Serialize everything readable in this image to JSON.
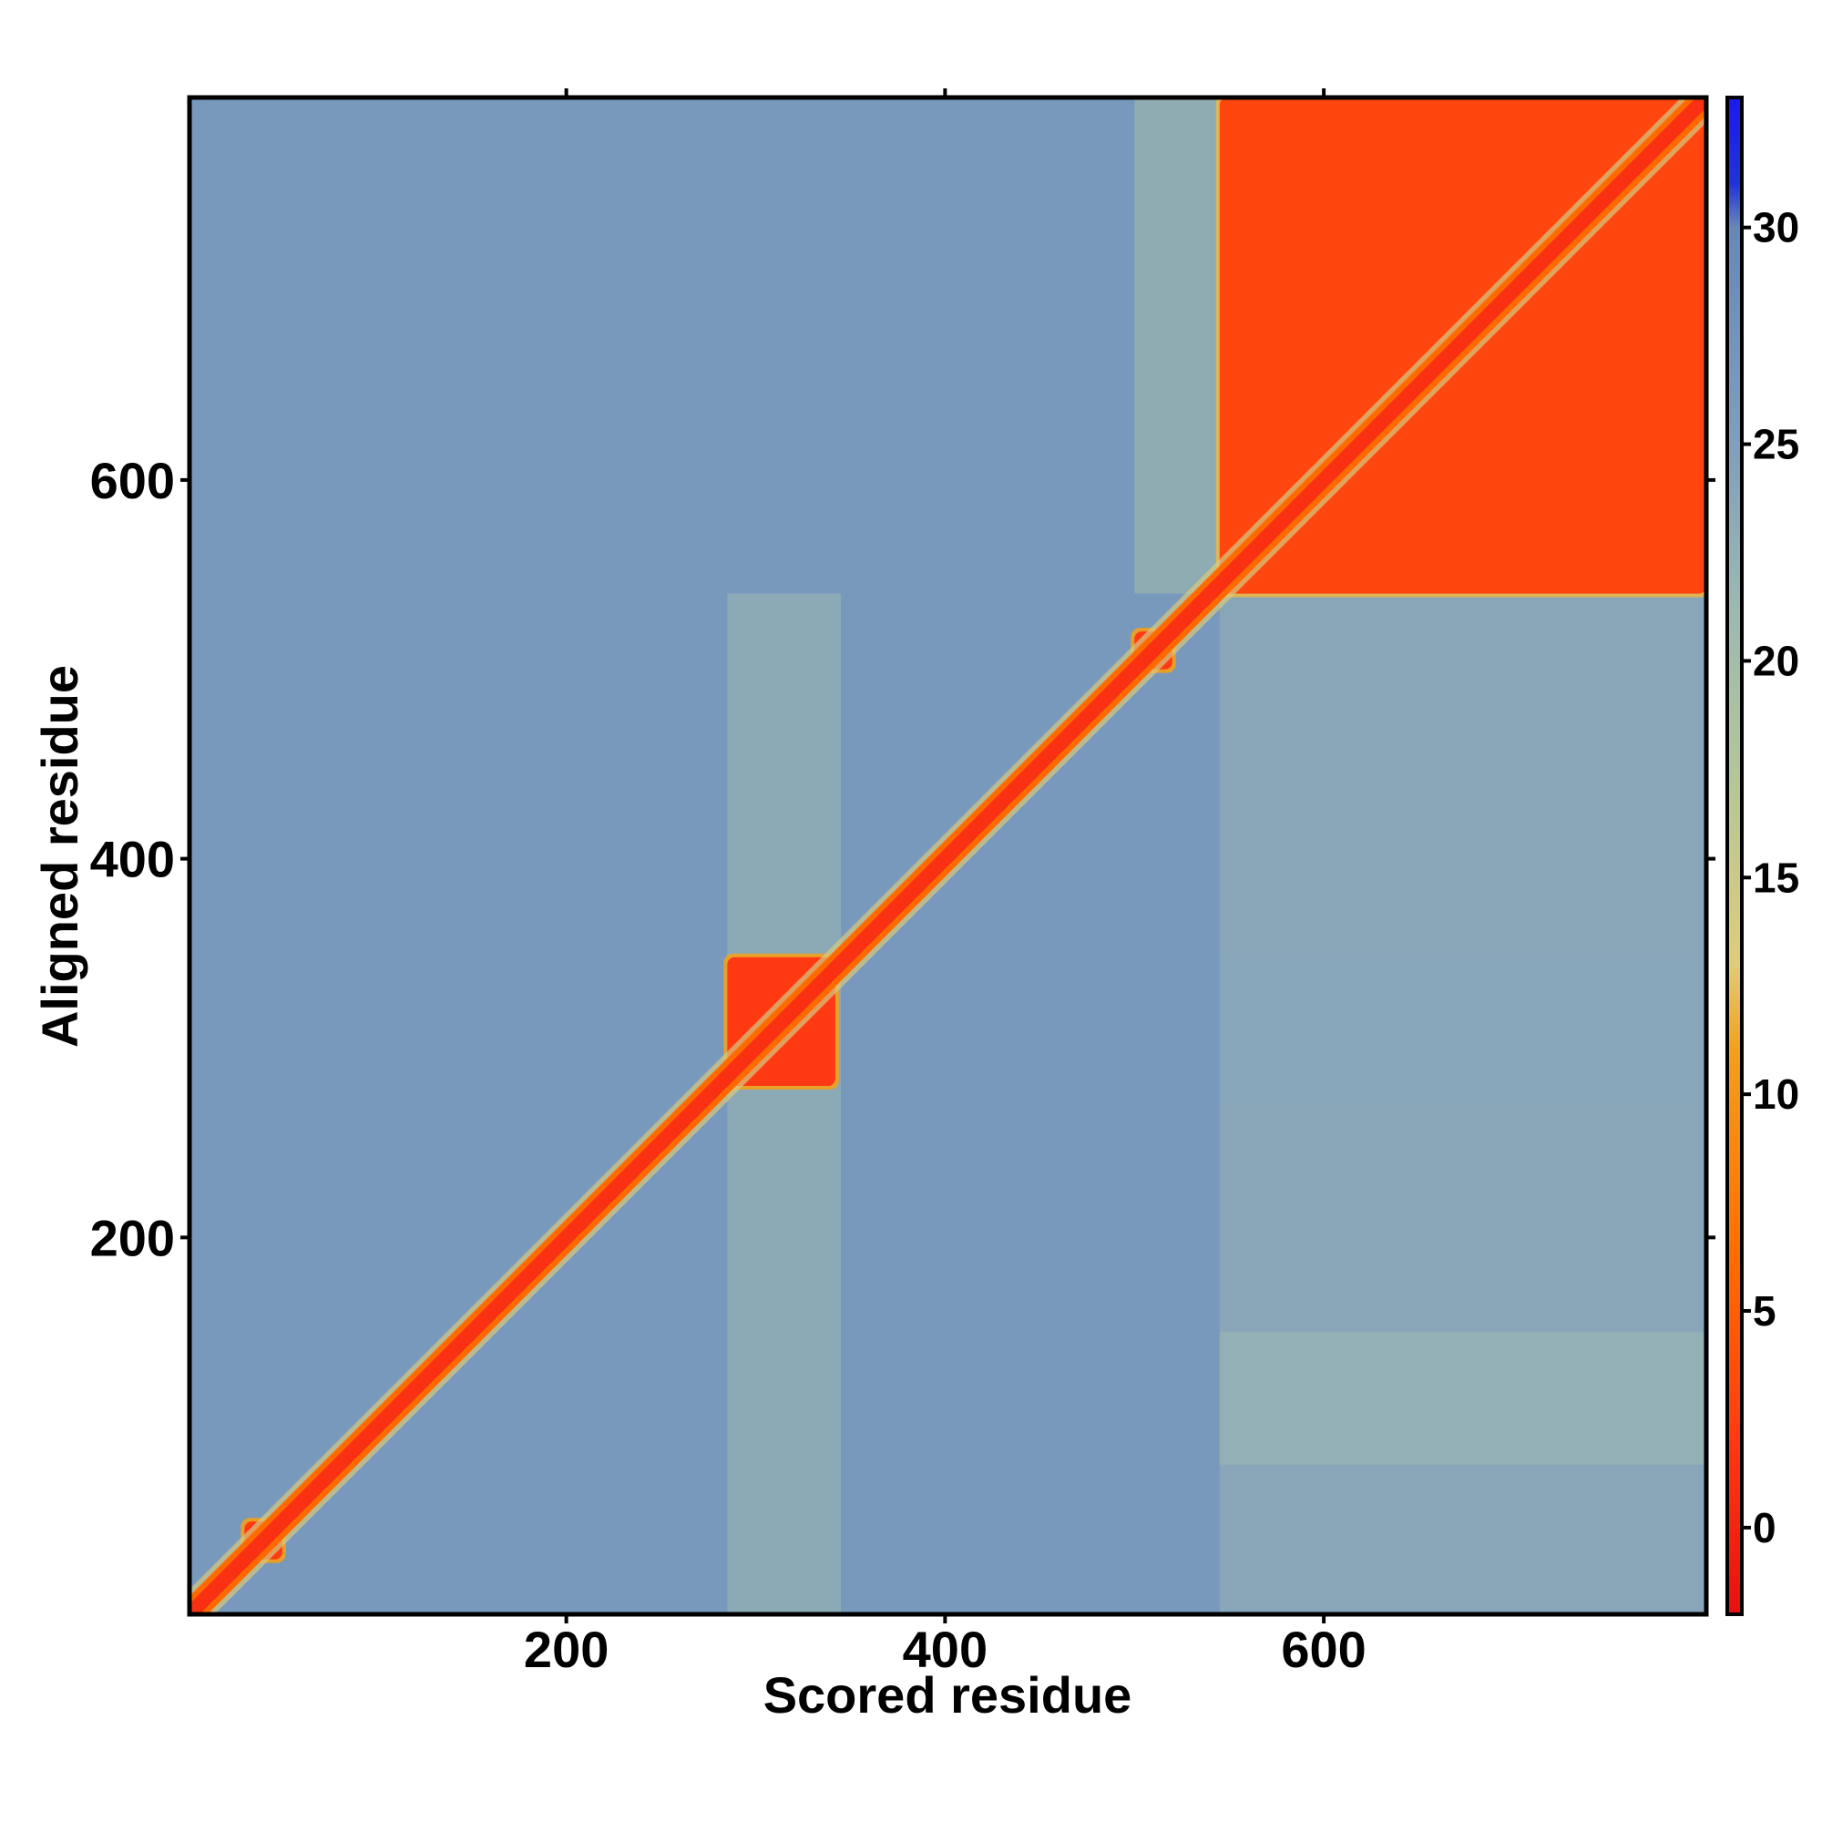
{
  "chart_data": {
    "type": "heatmap",
    "title": "",
    "xlabel": "Scored residue",
    "ylabel": "Aligned residue",
    "xlim": [
      1,
      802
    ],
    "ylim": [
      1,
      802
    ],
    "xticks": [
      200,
      400,
      600
    ],
    "yticks": [
      200,
      400,
      600
    ],
    "colorbar": {
      "range": [
        -2,
        33
      ],
      "ticks": [
        0,
        5,
        10,
        15,
        20,
        25,
        30
      ],
      "stops": [
        {
          "value": -2,
          "color": "#e81010"
        },
        {
          "value": 2,
          "color": "#ff3a12"
        },
        {
          "value": 6,
          "color": "#ff6a00"
        },
        {
          "value": 11,
          "color": "#f3a01c"
        },
        {
          "value": 13,
          "color": "#e0cc7a"
        },
        {
          "value": 17,
          "color": "#b6c796"
        },
        {
          "value": 21,
          "color": "#9dbab1"
        },
        {
          "value": 25,
          "color": "#7f9fbd"
        },
        {
          "value": 30,
          "color": "#6788b8"
        },
        {
          "value": 31,
          "color": "#2332d8"
        },
        {
          "value": 33,
          "color": "#1a1aee"
        }
      ]
    },
    "background_value": 26.5,
    "diagonal": {
      "value": 1,
      "halfwidth_residues": 12
    },
    "blocks": [
      {
        "name": "domain-1",
        "x": [
          1,
          550
        ],
        "y": [
          1,
          550
        ],
        "value": 26.5
      },
      {
        "name": "domain-c-terminal",
        "x": [
          545,
          802
        ],
        "y": [
          540,
          802
        ],
        "value": 3
      },
      {
        "name": "small-block-300",
        "x": [
          285,
          342
        ],
        "y": [
          280,
          348
        ],
        "value": 2
      },
      {
        "name": "small-block-510",
        "x": [
          500,
          520
        ],
        "y": [
          500,
          520
        ],
        "value": 2
      },
      {
        "name": "small-block-40",
        "x": [
          30,
          50
        ],
        "y": [
          30,
          50
        ],
        "value": 2
      }
    ],
    "bands": [
      {
        "axis": "x",
        "range": [
          285,
          345
        ],
        "y": [
          1,
          540
        ],
        "value": 21
      },
      {
        "axis": "x",
        "range": [
          500,
          545
        ],
        "y": [
          540,
          802
        ],
        "value": 20
      },
      {
        "axis": "x",
        "range": [
          545,
          802
        ],
        "y": [
          1,
          540
        ],
        "value": 22
      },
      {
        "axis": "y",
        "range": [
          270,
          350
        ],
        "x": [
          545,
          802
        ],
        "value": 24
      },
      {
        "axis": "y",
        "range": [
          80,
          150
        ],
        "x": [
          545,
          802
        ],
        "value": 21
      }
    ],
    "grid": false,
    "legend": "colorbar-right"
  }
}
